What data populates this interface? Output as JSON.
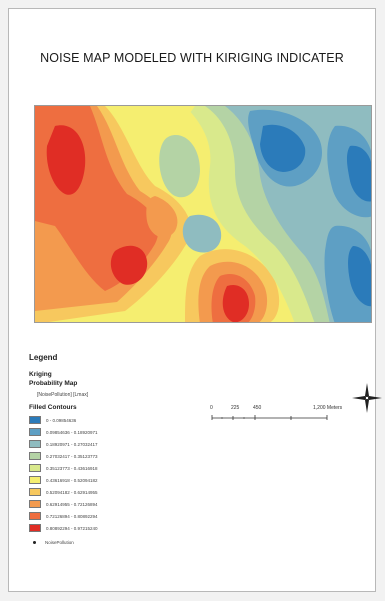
{
  "title": "NOISE MAP MODELED WITH  KIRIGING INDICATER",
  "legend": {
    "heading": "Legend",
    "kriging": "Kriging",
    "probability_map": "Probability Map",
    "formula": "[NoisePollution] [Lmax]",
    "filled_contours": "Filled Contours",
    "classes": [
      {
        "label": "0 - 0.09854636",
        "color": "#2b7bba"
      },
      {
        "label": "0.09854636 - 0.18920971",
        "color": "#5e9fc4"
      },
      {
        "label": "0.18920971 - 0.27032417",
        "color": "#8fbcc0"
      },
      {
        "label": "0.27032417 - 0.35123773",
        "color": "#b4d3a5"
      },
      {
        "label": "0.35123773 - 0.43616918",
        "color": "#d9e98c"
      },
      {
        "label": "0.43616918 - 0.52094182",
        "color": "#f5ee70"
      },
      {
        "label": "0.52094182 - 0.62914955",
        "color": "#f7c85e"
      },
      {
        "label": "0.62914955 - 0.72126894",
        "color": "#f39a4e"
      },
      {
        "label": "0.72126894 - 0.80892294",
        "color": "#ee6e40"
      },
      {
        "label": "0.80892294 - 0.97215240",
        "color": "#e02d25"
      }
    ],
    "point_label": "NoisePollution"
  },
  "scale": {
    "ticks": [
      "0",
      "225",
      "450",
      "",
      "1,200 Meters"
    ]
  },
  "north_arrow": "north-arrow-icon"
}
